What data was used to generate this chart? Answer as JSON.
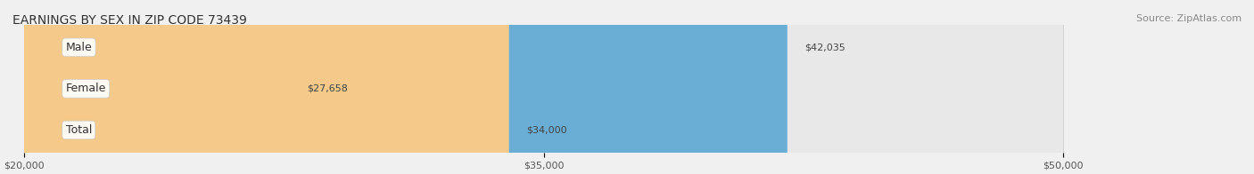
{
  "title": "EARNINGS BY SEX IN ZIP CODE 73439",
  "source": "Source: ZipAtlas.com",
  "categories": [
    "Male",
    "Female",
    "Total"
  ],
  "values": [
    42035,
    27658,
    34000
  ],
  "bar_colors": [
    "#6aaed6",
    "#f4a8b8",
    "#f5c98a"
  ],
  "label_colors": [
    "white",
    "#555555",
    "#555555"
  ],
  "value_labels": [
    "$42,035",
    "$27,658",
    "$34,000"
  ],
  "xmin": 20000,
  "xmax": 50000,
  "xticks": [
    20000,
    35000,
    50000
  ],
  "xtick_labels": [
    "$20,000",
    "$35,000",
    "$50,000"
  ],
  "background_color": "#f0f0f0",
  "bar_bg_color": "#e8e8e8",
  "title_fontsize": 10,
  "source_fontsize": 8,
  "label_fontsize": 9,
  "value_fontsize": 8
}
